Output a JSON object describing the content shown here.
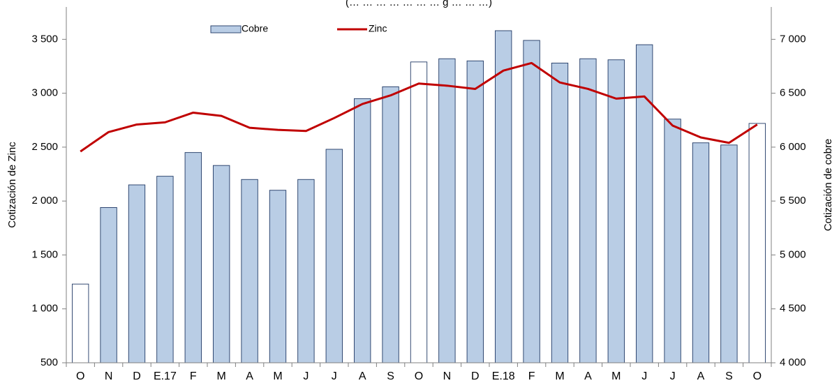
{
  "chart_data": {
    "type": "bar",
    "title": "(… … … … … … … g … … …)",
    "categories": [
      "O",
      "N",
      "D",
      "E.17",
      "F",
      "M",
      "A",
      "M",
      "J",
      "J",
      "A",
      "S",
      "O",
      "N",
      "D",
      "E.18",
      "F",
      "M",
      "A",
      "M",
      "J",
      "J",
      "A",
      "S",
      "O"
    ],
    "series": [
      {
        "name": "Cobre",
        "type": "bar",
        "axis": "right",
        "color": "#b9cde5",
        "highlight_color": "#ffffff",
        "border_color": "#1f3864",
        "highlight_indices": [
          0,
          12,
          24
        ],
        "values": [
          4730,
          5440,
          5650,
          5730,
          5950,
          5830,
          5700,
          5600,
          5700,
          5980,
          6450,
          6560,
          6790,
          6820,
          6800,
          7080,
          6990,
          6780,
          6820,
          6810,
          6950,
          6260,
          6040,
          6020,
          6220
        ]
      },
      {
        "name": "Zinc",
        "type": "line",
        "axis": "left",
        "color": "#c00000",
        "values": [
          2460,
          2640,
          2710,
          2730,
          2820,
          2790,
          2680,
          2660,
          2650,
          2770,
          2900,
          2980,
          3090,
          3070,
          3040,
          3210,
          3280,
          3100,
          3040,
          2950,
          2970,
          2700,
          2590,
          2540,
          2710
        ]
      }
    ],
    "y_left": {
      "label": "Cotización de Zinc",
      "min": 500,
      "max": 3800,
      "ticks": [
        500,
        1000,
        1500,
        2000,
        2500,
        3000,
        3500
      ],
      "tick_labels": [
        "500",
        "1 000",
        "1 500",
        "2 000",
        "2 500",
        "3 000",
        "3 500"
      ]
    },
    "y_right": {
      "label": "Cotización de cobre",
      "min": 4000,
      "max": 7300,
      "ticks": [
        4000,
        4500,
        5000,
        5500,
        6000,
        6500,
        7000
      ],
      "tick_labels": [
        "4 000",
        "4 500",
        "5 000",
        "5 500",
        "6 000",
        "6 500",
        "7 000"
      ]
    },
    "legend": {
      "position": "top-center",
      "entries": [
        "Cobre",
        "Zinc"
      ]
    },
    "grid": false
  }
}
